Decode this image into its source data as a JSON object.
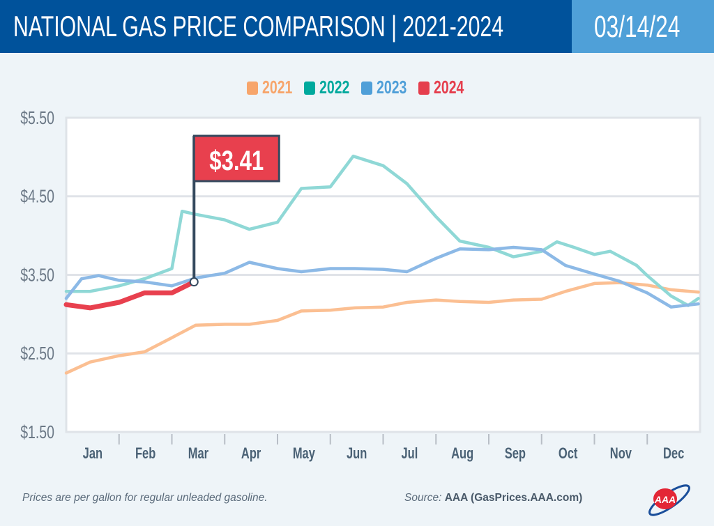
{
  "header": {
    "title": "NATIONAL GAS PRICE COMPARISON | 2021-2024",
    "date": "03/14/24"
  },
  "footer": {
    "note": "Prices are per gallon for regular unleaded gasoline.",
    "source_label": "Source:",
    "source": "AAA (GasPrices.AAA.com)",
    "logo_text": "AAA"
  },
  "chart_data": {
    "type": "line",
    "title": "NATIONAL GAS PRICE COMPARISON | 2021-2024",
    "xlabel": "",
    "ylabel": "",
    "x_tick_labels": [
      "Jan",
      "Feb",
      "Mar",
      "Apr",
      "May",
      "Jun",
      "Jul",
      "Aug",
      "Sep",
      "Oct",
      "Nov",
      "Dec"
    ],
    "y_tick_labels": [
      "$5.50",
      "$4.50",
      "$3.50",
      "$2.50",
      "$1.50"
    ],
    "ylim": [
      1.5,
      5.5
    ],
    "grid": "horizontal",
    "legend_placement": "top-center",
    "annotation": {
      "label": "$3.41",
      "x": "03-14",
      "y": 3.41,
      "series": "2024"
    },
    "series": [
      {
        "name": "2021",
        "color": "#f7a56b",
        "line_color": "#fbbf92",
        "x": [
          "01-01",
          "01-15",
          "02-01",
          "02-15",
          "03-01",
          "03-15",
          "04-01",
          "04-15",
          "05-01",
          "05-15",
          "06-01",
          "06-15",
          "07-01",
          "07-15",
          "08-01",
          "08-15",
          "09-01",
          "09-15",
          "10-01",
          "10-15",
          "11-01",
          "11-15",
          "12-01",
          "12-15",
          "12-31"
        ],
        "y": [
          2.25,
          2.39,
          2.47,
          2.52,
          2.7,
          2.86,
          2.87,
          2.87,
          2.92,
          3.04,
          3.05,
          3.08,
          3.09,
          3.15,
          3.18,
          3.16,
          3.15,
          3.18,
          3.19,
          3.29,
          3.39,
          3.4,
          3.37,
          3.31,
          3.28
        ]
      },
      {
        "name": "2022",
        "color": "#00a99d",
        "line_color": "#8fd8d6",
        "x": [
          "01-01",
          "01-15",
          "02-01",
          "02-15",
          "03-01",
          "03-07",
          "03-15",
          "04-01",
          "04-15",
          "05-01",
          "05-15",
          "06-01",
          "06-14",
          "07-01",
          "07-15",
          "08-01",
          "08-15",
          "09-01",
          "09-15",
          "10-01",
          "10-10",
          "10-20",
          "11-01",
          "11-10",
          "11-25",
          "12-01",
          "12-15",
          "12-25",
          "12-31"
        ],
        "y": [
          3.29,
          3.29,
          3.36,
          3.45,
          3.58,
          4.31,
          4.27,
          4.2,
          4.08,
          4.17,
          4.6,
          4.62,
          5.01,
          4.89,
          4.66,
          4.24,
          3.93,
          3.85,
          3.73,
          3.8,
          3.92,
          3.85,
          3.76,
          3.8,
          3.62,
          3.49,
          3.23,
          3.11,
          3.2
        ]
      },
      {
        "name": "2023",
        "color": "#4f9fd8",
        "line_color": "#8cb9e6",
        "x": [
          "01-01",
          "01-10",
          "01-20",
          "02-01",
          "02-15",
          "03-01",
          "03-15",
          "04-01",
          "04-15",
          "05-01",
          "05-15",
          "06-01",
          "06-15",
          "07-01",
          "07-15",
          "08-01",
          "08-15",
          "09-01",
          "09-15",
          "10-01",
          "10-15",
          "11-01",
          "11-15",
          "12-01",
          "12-15",
          "12-31"
        ],
        "y": [
          3.2,
          3.45,
          3.49,
          3.43,
          3.41,
          3.36,
          3.46,
          3.52,
          3.66,
          3.58,
          3.54,
          3.58,
          3.58,
          3.57,
          3.54,
          3.71,
          3.83,
          3.82,
          3.85,
          3.82,
          3.62,
          3.51,
          3.42,
          3.27,
          3.09,
          3.13
        ]
      },
      {
        "name": "2024",
        "color": "#e53e4d",
        "line_color": "#e8404e",
        "x": [
          "01-01",
          "01-15",
          "02-01",
          "02-15",
          "03-01",
          "03-14"
        ],
        "y": [
          3.12,
          3.08,
          3.15,
          3.27,
          3.27,
          3.41
        ]
      }
    ]
  }
}
